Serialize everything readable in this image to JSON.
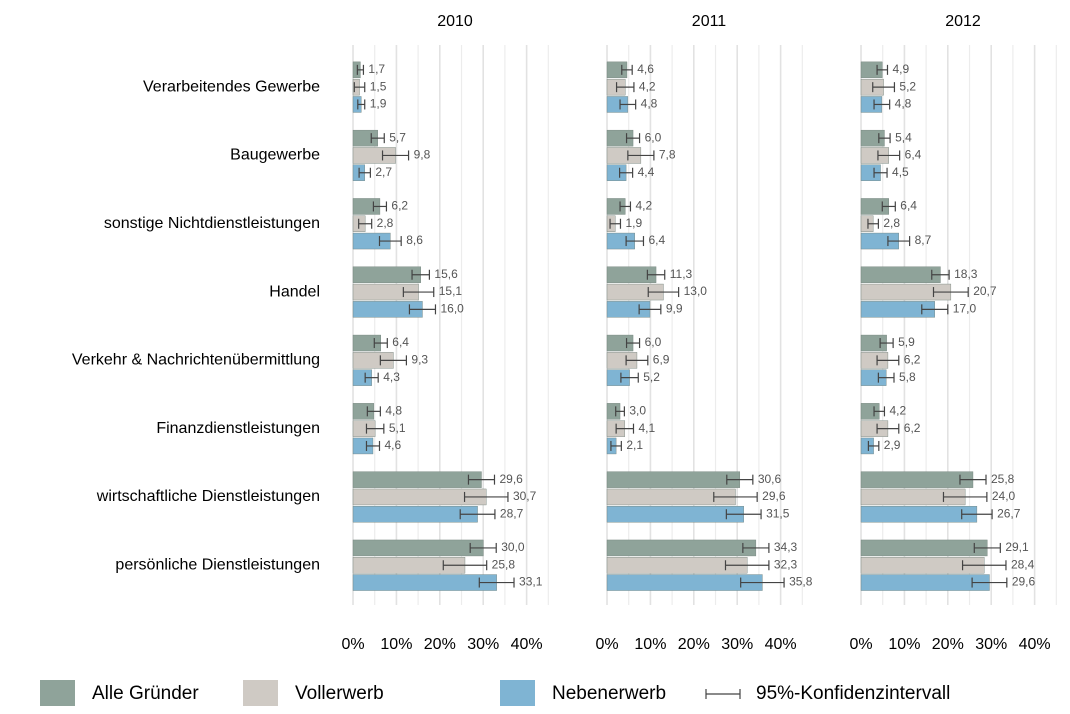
{
  "chart_data": {
    "type": "bar",
    "orientation": "horizontal",
    "categories": [
      "Verarbeitendes Gewerbe",
      "Baugewerbe",
      "sonstige Nichtdienstleistungen",
      "Handel",
      "Verkehr & Nachrichtenübermittlung",
      "Finanzdienstleistungen",
      "wirtschaftliche Dienstleistungen",
      "persönliche Dienstleistungen"
    ],
    "series": [
      {
        "name": "Alle Gründer",
        "color": "#8fa39a"
      },
      {
        "name": "Vollerwerb",
        "color": "#cfcac4"
      },
      {
        "name": "Nebenerwerb",
        "color": "#7fb4d3"
      }
    ],
    "error_legend": "95%-Konfidenzintervall",
    "xlim": [
      -3,
      50
    ],
    "xticks": [
      {
        "value": 0,
        "label": "0%"
      },
      {
        "value": 10,
        "label": "10%"
      },
      {
        "value": 20,
        "label": "20%"
      },
      {
        "value": 30,
        "label": "30%"
      },
      {
        "value": 40,
        "label": "40%"
      }
    ],
    "minor_xticks": [
      5,
      15,
      25,
      35,
      45
    ],
    "grid": true,
    "facets": [
      {
        "title": "2010",
        "series": [
          {
            "values": [
              1.7,
              5.7,
              6.2,
              15.6,
              6.4,
              4.8,
              29.6,
              30.0
            ],
            "value_labels": [
              "1,7",
              "5,7",
              "6,2",
              "15,6",
              "6,4",
              "4,8",
              "29,6",
              "30,0"
            ],
            "errors": [
              0.7,
              1.5,
              1.5,
              2,
              1.5,
              1.5,
              3,
              3
            ]
          },
          {
            "values": [
              1.5,
              9.8,
              2.8,
              15.1,
              9.3,
              5.1,
              30.7,
              25.8
            ],
            "value_labels": [
              "1,5",
              "9,8",
              "2,8",
              "15,1",
              "9,3",
              "5,1",
              "30,7",
              "25,8"
            ],
            "errors": [
              1.2,
              3,
              1.5,
              3.5,
              3,
              2,
              5,
              5
            ]
          },
          {
            "values": [
              1.9,
              2.7,
              8.6,
              16.0,
              4.3,
              4.6,
              28.7,
              33.1
            ],
            "value_labels": [
              "1,9",
              "2,7",
              "8,6",
              "16,0",
              "4,3",
              "4,6",
              "28,7",
              "33,1"
            ],
            "errors": [
              0.8,
              1.3,
              2.5,
              3,
              1.5,
              1.5,
              4,
              4
            ]
          }
        ]
      },
      {
        "title": "2011",
        "series": [
          {
            "values": [
              4.6,
              6.0,
              4.2,
              11.3,
              6.0,
              3.0,
              30.6,
              34.3
            ],
            "value_labels": [
              "4,6",
              "6,0",
              "4,2",
              "11,3",
              "6,0",
              "3,0",
              "30,6",
              "34,3"
            ],
            "errors": [
              1.2,
              1.5,
              1.2,
              2,
              1.5,
              1,
              3,
              3
            ]
          },
          {
            "values": [
              4.2,
              7.8,
              1.9,
              13.0,
              6.9,
              4.1,
              29.6,
              32.3
            ],
            "value_labels": [
              "4,2",
              "7,8",
              "1,9",
              "13,0",
              "6,9",
              "4,1",
              "29,6",
              "32,3"
            ],
            "errors": [
              2,
              3,
              1.2,
              3.5,
              2.5,
              2,
              5,
              5
            ]
          },
          {
            "values": [
              4.8,
              4.4,
              6.4,
              9.9,
              5.2,
              2.1,
              31.5,
              35.8
            ],
            "value_labels": [
              "4,8",
              "4,4",
              "6,4",
              "9,9",
              "5,2",
              "2,1",
              "31,5",
              "35,8"
            ],
            "errors": [
              1.8,
              1.5,
              2,
              2.5,
              2,
              1.2,
              4,
              5
            ]
          }
        ]
      },
      {
        "title": "2012",
        "series": [
          {
            "values": [
              4.9,
              5.4,
              6.4,
              18.3,
              5.9,
              4.2,
              25.8,
              29.1
            ],
            "value_labels": [
              "4,9",
              "5,4",
              "6,4",
              "18,3",
              "5,9",
              "4,2",
              "25,8",
              "29,1"
            ],
            "errors": [
              1.2,
              1.3,
              1.5,
              2,
              1.5,
              1.2,
              3,
              3
            ]
          },
          {
            "values": [
              5.2,
              6.4,
              2.8,
              20.7,
              6.2,
              6.2,
              24.0,
              28.4
            ],
            "value_labels": [
              "5,2",
              "6,4",
              "2,8",
              "20,7",
              "6,2",
              "6,2",
              "24,0",
              "28,4"
            ],
            "errors": [
              2.5,
              2.5,
              1.2,
              4,
              2.5,
              2.5,
              5,
              5
            ]
          },
          {
            "values": [
              4.8,
              4.5,
              8.7,
              17.0,
              5.8,
              2.9,
              26.7,
              29.6
            ],
            "value_labels": [
              "4,8",
              "4,5",
              "8,7",
              "17,0",
              "5,8",
              "2,9",
              "26,7",
              "29,6"
            ],
            "errors": [
              1.8,
              1.5,
              2.5,
              3,
              1.8,
              1.2,
              3.5,
              4
            ]
          }
        ]
      }
    ]
  }
}
